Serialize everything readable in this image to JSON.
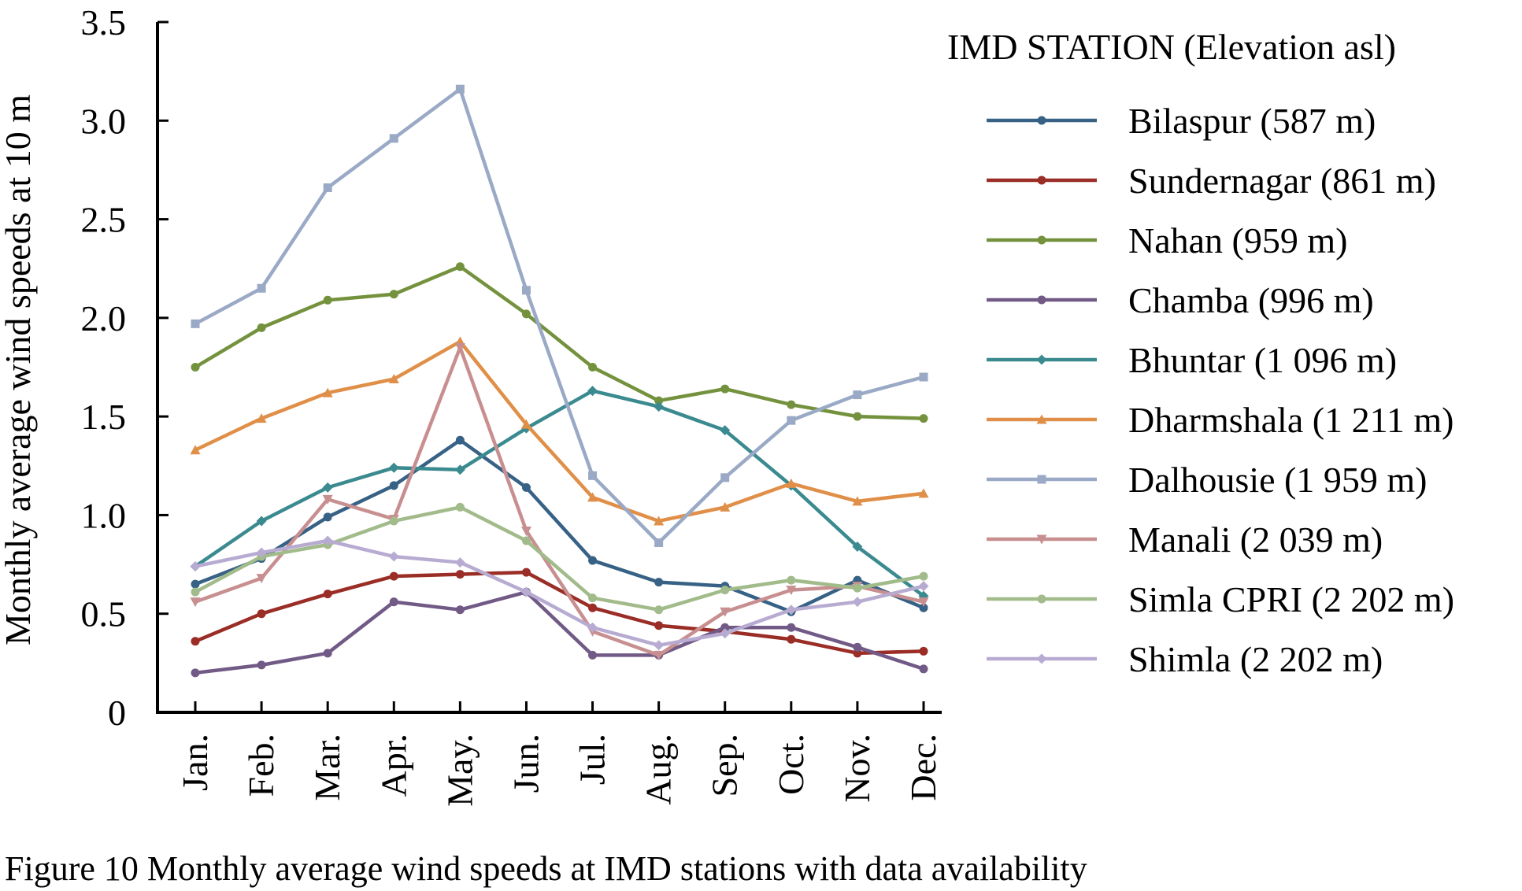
{
  "chart_data": {
    "type": "line",
    "ylabel": "Monthly average wind speeds at 10 m",
    "xlabel": "",
    "ylim": [
      0,
      3.5
    ],
    "yticks": [
      "0",
      "0.5",
      "1.0",
      "1.5",
      "2.0",
      "2.5",
      "3.0",
      "3.5"
    ],
    "categories": [
      "Jan.",
      "Feb.",
      "Mar.",
      "Apr.",
      "May.",
      "Jun.",
      "Jul.",
      "Aug.",
      "Sep.",
      "Oct.",
      "Nov.",
      "Dec."
    ],
    "legend_title": "IMD STATION (Elevation asl)",
    "legend_position": "right",
    "grid": false,
    "series": [
      {
        "name": "Bilaspur (587 m)",
        "color": "#376285",
        "marker": "circle",
        "values": [
          0.65,
          0.78,
          0.99,
          1.15,
          1.38,
          1.14,
          0.77,
          0.66,
          0.64,
          0.51,
          0.67,
          0.53
        ]
      },
      {
        "name": "Sundernagar (861 m)",
        "color": "#9a2d26",
        "marker": "circle",
        "values": [
          0.36,
          0.5,
          0.6,
          0.69,
          0.7,
          0.71,
          0.53,
          0.44,
          0.41,
          0.37,
          0.3,
          0.31
        ]
      },
      {
        "name": "Nahan (959 m)",
        "color": "#74923e",
        "marker": "circle",
        "values": [
          1.75,
          1.95,
          2.09,
          2.12,
          2.26,
          2.02,
          1.75,
          1.58,
          1.64,
          1.56,
          1.5,
          1.49
        ]
      },
      {
        "name": "Chamba (996 m)",
        "color": "#715a86",
        "marker": "circle",
        "values": [
          0.2,
          0.24,
          0.3,
          0.56,
          0.52,
          0.61,
          0.29,
          0.29,
          0.43,
          0.43,
          0.33,
          0.22
        ]
      },
      {
        "name": "Bhuntar (1 096 m)",
        "color": "#3a8a8f",
        "marker": "diamond",
        "values": [
          0.74,
          0.97,
          1.14,
          1.24,
          1.23,
          1.44,
          1.63,
          1.55,
          1.43,
          1.15,
          0.84,
          0.59
        ]
      },
      {
        "name": "Dharmshala (1 211 m)",
        "color": "#e08f48",
        "marker": "triangle",
        "values": [
          1.33,
          1.49,
          1.62,
          1.69,
          1.88,
          1.46,
          1.09,
          0.97,
          1.04,
          1.16,
          1.07,
          1.11
        ]
      },
      {
        "name": "Dalhousie (1 959 m)",
        "color": "#9aa9c5",
        "marker": "square",
        "values": [
          1.97,
          2.15,
          2.66,
          2.91,
          3.16,
          2.14,
          1.2,
          0.86,
          1.19,
          1.48,
          1.61,
          1.7
        ]
      },
      {
        "name": "Manali (2 039 m)",
        "color": "#c88f90",
        "marker": "triangle-down",
        "values": [
          0.56,
          0.68,
          1.08,
          0.98,
          1.85,
          0.92,
          0.41,
          0.29,
          0.51,
          0.62,
          0.64,
          0.56
        ]
      },
      {
        "name": "Simla CPRI (2 202 m)",
        "color": "#a2bb8b",
        "marker": "circle",
        "values": [
          0.61,
          0.79,
          0.85,
          0.97,
          1.04,
          0.87,
          0.58,
          0.52,
          0.62,
          0.67,
          0.63,
          0.69
        ]
      },
      {
        "name": "Shimla (2 202 m)",
        "color": "#b8abd2",
        "marker": "diamond",
        "values": [
          0.74,
          0.81,
          0.87,
          0.79,
          0.76,
          0.61,
          0.43,
          0.34,
          0.4,
          0.52,
          0.56,
          0.64
        ]
      }
    ]
  },
  "caption": "Figure 10 Monthly average wind speeds at IMD stations with data availability"
}
